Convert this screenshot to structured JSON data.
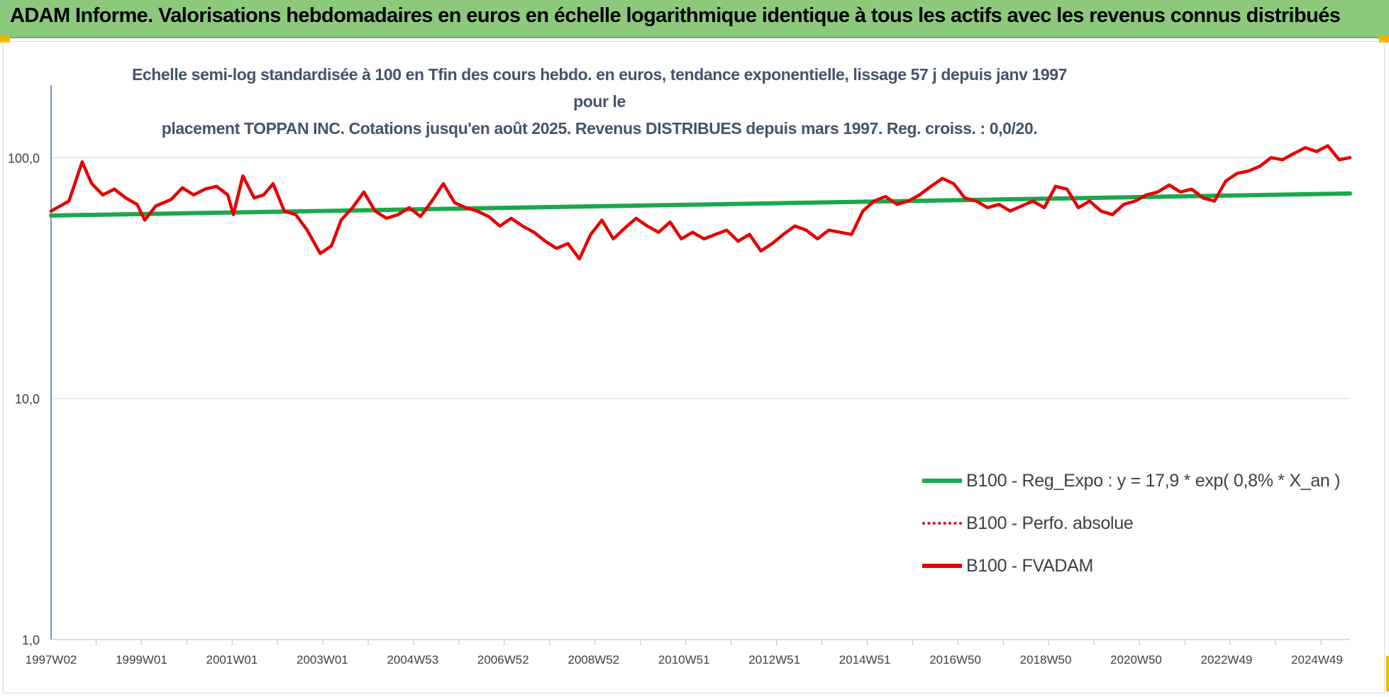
{
  "header": {
    "title": "ADAM Informe. Valorisations hebdomadaires en euros en échelle logarithmique identique à tous les actifs avec les revenus connus distribués"
  },
  "colors": {
    "banner": "#8cc97c",
    "accent": "#f0b400",
    "regression": "#1aa84a",
    "fvadam": "#e60000",
    "perfo": "#e60000",
    "subtitle": "#44546a"
  },
  "chart_data": {
    "type": "line",
    "title_line1": "Echelle semi-log standardisée à 100 en Tfin des cours hebdo. en euros, tendance exponentielle, lissage 57 j depuis janv 1997 pour le",
    "title_line2": "placement TOPPAN INC. Cotations jusqu'en août 2025. Revenus DISTRIBUES depuis mars 1997. Reg. croiss. : 0,0/20.",
    "y_scale": "log",
    "ylim": [
      1,
      200
    ],
    "y_ticks": [
      {
        "value": 1,
        "label": "1,0"
      },
      {
        "value": 10,
        "label": "10,0"
      },
      {
        "value": 100,
        "label": "100,0"
      }
    ],
    "xlim": [
      "1997-01-08",
      "2025-08-27"
    ],
    "x_ticks": [
      {
        "date": "1997-01-08",
        "label": "1997W02"
      },
      {
        "date": "1999-01-06",
        "label": "1999W01"
      },
      {
        "date": "2001-01-03",
        "label": "2001W01"
      },
      {
        "date": "2003-01-01",
        "label": "2003W01"
      },
      {
        "date": "2004-12-29",
        "label": "2004W53"
      },
      {
        "date": "2006-12-27",
        "label": "2006W52"
      },
      {
        "date": "2008-12-24",
        "label": "2008W52"
      },
      {
        "date": "2010-12-22",
        "label": "2010W51"
      },
      {
        "date": "2012-12-19",
        "label": "2012W51"
      },
      {
        "date": "2014-12-17",
        "label": "2014W51"
      },
      {
        "date": "2016-12-14",
        "label": "2016W50"
      },
      {
        "date": "2018-12-12",
        "label": "2018W50"
      },
      {
        "date": "2020-12-09",
        "label": "2020W50"
      },
      {
        "date": "2022-12-07",
        "label": "2022W49"
      },
      {
        "date": "2024-12-04",
        "label": "2024W49"
      }
    ],
    "grid": "horizontal",
    "legend_position": "bottom-right",
    "series": [
      {
        "name": "B100 - Reg_Expo : y = 17,9 * exp( 0,8% *  X_an )",
        "color": "#1aa84a",
        "style": "solid",
        "x": [
          "1997-01-08",
          "2025-08-27"
        ],
        "y": [
          57.5,
          71.0
        ]
      },
      {
        "name": "B100 - Perfo. absolue",
        "color": "#e60000",
        "style": "dotted",
        "x": [],
        "y": []
      },
      {
        "name": "B100 - FVADAM",
        "color": "#e60000",
        "style": "solid",
        "x": [
          "1997-01-08",
          "1997-06-01",
          "1997-09-15",
          "1997-12-01",
          "1998-03-01",
          "1998-06-01",
          "1998-09-01",
          "1998-12-01",
          "1999-02-01",
          "1999-05-01",
          "1999-09-01",
          "1999-12-01",
          "2000-03-01",
          "2000-06-01",
          "2000-09-01",
          "2000-12-01",
          "2001-01-15",
          "2001-04-01",
          "2001-07-01",
          "2001-09-15",
          "2001-12-01",
          "2002-03-01",
          "2002-06-01",
          "2002-09-01",
          "2002-12-15",
          "2003-03-15",
          "2003-06-01",
          "2003-09-01",
          "2003-12-01",
          "2004-03-01",
          "2004-06-01",
          "2004-09-01",
          "2004-12-01",
          "2005-03-01",
          "2005-06-01",
          "2005-09-01",
          "2005-12-01",
          "2006-03-01",
          "2006-06-01",
          "2006-09-01",
          "2006-12-01",
          "2007-03-01",
          "2007-06-01",
          "2007-09-01",
          "2007-12-01",
          "2008-03-01",
          "2008-06-01",
          "2008-09-01",
          "2008-12-01",
          "2009-03-01",
          "2009-06-01",
          "2009-09-01",
          "2009-12-01",
          "2010-03-01",
          "2010-06-01",
          "2010-09-01",
          "2010-12-01",
          "2011-03-01",
          "2011-06-01",
          "2011-09-01",
          "2011-12-01",
          "2012-03-01",
          "2012-06-01",
          "2012-09-01",
          "2012-12-01",
          "2013-03-01",
          "2013-06-01",
          "2013-09-01",
          "2013-12-01",
          "2014-03-01",
          "2014-06-01",
          "2014-09-01",
          "2014-12-01",
          "2015-03-01",
          "2015-06-01",
          "2015-09-01",
          "2015-12-01",
          "2016-03-01",
          "2016-06-01",
          "2016-09-01",
          "2016-12-01",
          "2017-03-01",
          "2017-06-01",
          "2017-09-01",
          "2017-12-01",
          "2018-03-01",
          "2018-06-01",
          "2018-09-01",
          "2018-12-01",
          "2019-03-01",
          "2019-06-01",
          "2019-09-01",
          "2019-12-01",
          "2020-03-01",
          "2020-06-01",
          "2020-09-01",
          "2020-12-01",
          "2021-03-01",
          "2021-06-01",
          "2021-09-01",
          "2021-12-01",
          "2022-03-01",
          "2022-06-01",
          "2022-09-01",
          "2022-12-01",
          "2023-03-01",
          "2023-06-01",
          "2023-09-01",
          "2023-12-01",
          "2024-03-01",
          "2024-06-01",
          "2024-09-01",
          "2024-12-01",
          "2025-03-01",
          "2025-06-01",
          "2025-08-27"
        ],
        "y": [
          60,
          66,
          96,
          78,
          70,
          74,
          68,
          64,
          55,
          63,
          67,
          75,
          70,
          74,
          76,
          70,
          58,
          84,
          68,
          70,
          78,
          60,
          58,
          50,
          40,
          43,
          55,
          62,
          72,
          60,
          56,
          58,
          62,
          57,
          66,
          78,
          65,
          62,
          60,
          57,
          52,
          56,
          52,
          49,
          45,
          42,
          44,
          38,
          48,
          55,
          46,
          51,
          56,
          52,
          49,
          54,
          46,
          49,
          46,
          48,
          50,
          45,
          48,
          41,
          44,
          48,
          52,
          50,
          46,
          50,
          49,
          48,
          60,
          66,
          69,
          64,
          66,
          70,
          76,
          82,
          78,
          68,
          66,
          62,
          64,
          60,
          63,
          66,
          62,
          76,
          74,
          62,
          66,
          60,
          58,
          64,
          66,
          70,
          72,
          77,
          72,
          74,
          68,
          66,
          80,
          86,
          88,
          92,
          100,
          98,
          104,
          110,
          106,
          112,
          98,
          100
        ]
      }
    ]
  }
}
